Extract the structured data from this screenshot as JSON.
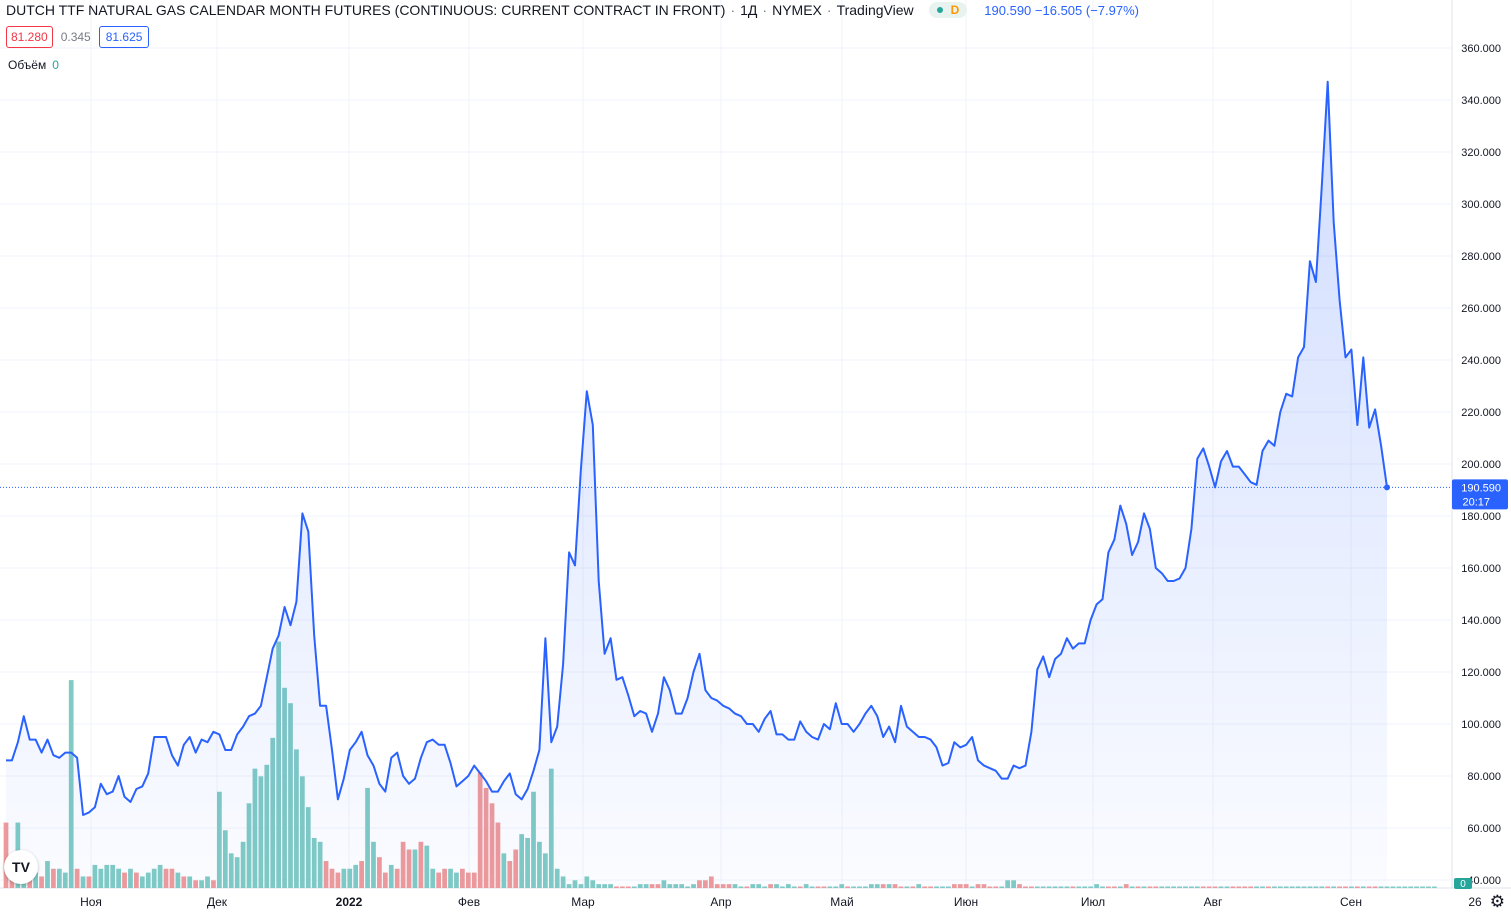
{
  "header": {
    "symbol": "DUTCH TTF NATURAL GAS CALENDAR MONTH FUTURES (CONTINUOUS: CURRENT CONTRACT IN FRONT)",
    "interval": "1Д",
    "exchange": "NYMEX",
    "source": "TradingView",
    "status_letter": "D",
    "last": "190.590",
    "change": "−16.505 (−7.97%)",
    "sep": "·"
  },
  "quote_row": {
    "bid": "81.280",
    "spread": "0.345",
    "ask": "81.625"
  },
  "volume_row": {
    "label": "Объём",
    "value": "0"
  },
  "price_label": {
    "value": "190.590",
    "countdown": "20:17"
  },
  "volume_axis_label": "0",
  "colors": {
    "line": "#2962ff",
    "up": "#26a69a",
    "down": "#ef5350"
  },
  "icons": {
    "logo": "tradingview-logo-icon",
    "settings": "gear-icon"
  },
  "logo_text": "TV",
  "chart_data": {
    "type": "line",
    "y_axis": {
      "ticks": [
        "360.000",
        "340.000",
        "320.000",
        "300.000",
        "280.000",
        "260.000",
        "240.000",
        "220.000",
        "200.000",
        "180.000",
        "160.000",
        "140.000",
        "120.000",
        "100.000",
        "80.000",
        "60.000",
        "40.000"
      ],
      "range": [
        37,
        363
      ]
    },
    "x_axis": {
      "ticks": [
        "Ноя",
        "Дек",
        "2022",
        "Фев",
        "Мар",
        "Апр",
        "Май",
        "Июн",
        "Июл",
        "Авг",
        "Сен",
        "26"
      ]
    },
    "series": [
      {
        "values": [
          86,
          86,
          93,
          103,
          94,
          94,
          89,
          94,
          88,
          87,
          89,
          89,
          87,
          65,
          66,
          68,
          77,
          73,
          74,
          80,
          72,
          70,
          75,
          76,
          81,
          95,
          95,
          95,
          88,
          84,
          92,
          95,
          89,
          94,
          93,
          97,
          96,
          90,
          90,
          96,
          99,
          103,
          104,
          107,
          118,
          129,
          134,
          145,
          138,
          147,
          181,
          174,
          134,
          107,
          107,
          90,
          71,
          79,
          90,
          93,
          97,
          88,
          84,
          77,
          74,
          87,
          89,
          80,
          77,
          79,
          87,
          93,
          94,
          92,
          92,
          85,
          76,
          78,
          80,
          84,
          81,
          78,
          74,
          74,
          78,
          81,
          73,
          71,
          75,
          82,
          90,
          133,
          93,
          99,
          123,
          166,
          161,
          198,
          228,
          215,
          155,
          127,
          133,
          117,
          118,
          111,
          103,
          105,
          104,
          97,
          104,
          118,
          113,
          104,
          104,
          110,
          120,
          127,
          113,
          110,
          109,
          107,
          106,
          104,
          103,
          100,
          100,
          97,
          102,
          105,
          96,
          96,
          94,
          94,
          101,
          97,
          95,
          94,
          100,
          98,
          108,
          100,
          100,
          97,
          100,
          104,
          107,
          103,
          95,
          99,
          93,
          107,
          99,
          97,
          95,
          95,
          94,
          91,
          84,
          85,
          93,
          91,
          92,
          95,
          86,
          84,
          83,
          82,
          79,
          79,
          84,
          83,
          84,
          97,
          121,
          126,
          118,
          125,
          127,
          133,
          129,
          131,
          131,
          140,
          146,
          148,
          166,
          171,
          184,
          177,
          165,
          170,
          181,
          175,
          160,
          158,
          155,
          155,
          156,
          160,
          175,
          202,
          206,
          199,
          191,
          201,
          205,
          199,
          199,
          196,
          193,
          192,
          205,
          209,
          207,
          220,
          227,
          226,
          241,
          245,
          278,
          270,
          307,
          347,
          293,
          263,
          241,
          244,
          215,
          241,
          214,
          221,
          207,
          191
        ]
      }
    ],
    "volume": {
      "values": [
        17,
        6,
        17,
        7,
        3,
        4,
        3,
        7,
        5,
        5,
        4,
        54,
        5,
        3,
        3,
        6,
        5,
        6,
        6,
        5,
        4,
        5,
        4,
        3,
        4,
        5,
        6,
        5,
        5,
        4,
        3,
        3,
        2,
        2,
        3,
        2,
        25,
        15,
        9,
        8,
        12,
        22,
        31,
        29,
        32,
        39,
        64,
        52,
        48,
        36,
        29,
        21,
        13,
        12,
        7,
        5,
        4,
        5,
        5,
        6,
        7,
        26,
        12,
        8,
        4,
        6,
        5,
        12,
        10,
        10,
        12,
        11,
        5,
        4,
        5,
        5,
        4,
        5,
        4,
        4,
        30,
        26,
        22,
        17,
        9,
        7,
        10,
        14,
        13,
        25,
        12,
        9,
        31,
        5,
        3,
        1,
        2,
        1,
        3,
        2,
        1,
        1,
        1,
        0,
        0,
        0,
        0,
        1,
        1,
        1,
        1,
        2,
        1,
        1,
        1,
        0,
        1,
        2,
        2,
        3,
        1,
        1,
        1,
        1,
        0,
        0,
        1,
        1,
        0,
        1,
        1,
        0,
        1,
        0,
        0,
        1,
        0,
        0,
        0,
        0,
        0,
        1,
        0,
        0,
        0,
        0,
        1,
        1,
        1,
        1,
        1,
        0,
        0,
        0,
        1,
        0,
        0,
        0,
        0,
        0,
        1,
        1,
        1,
        0,
        1,
        1,
        0,
        0,
        0,
        2,
        2,
        1,
        0,
        0,
        0,
        0,
        0,
        0,
        0,
        0,
        0,
        0,
        0,
        0,
        1,
        0,
        0,
        0,
        0,
        1,
        0,
        0,
        0,
        0,
        0,
        0,
        0,
        0,
        0,
        0,
        0,
        0,
        0,
        0,
        0,
        0,
        0,
        0,
        0,
        0,
        0,
        0,
        0,
        0,
        0,
        0,
        0,
        0,
        0,
        0,
        0,
        0,
        0,
        0,
        0,
        0,
        0,
        0,
        0,
        0,
        0,
        0,
        0,
        0,
        0,
        0,
        0,
        0,
        0,
        0,
        0,
        0
      ],
      "down": [
        1,
        1,
        0,
        0,
        1,
        0,
        1,
        0,
        1,
        0,
        0,
        0,
        1,
        0,
        1,
        0,
        0,
        0,
        0,
        0,
        1,
        0,
        1,
        0,
        0,
        0,
        0,
        1,
        1,
        0,
        1,
        0,
        1,
        0,
        0,
        1,
        0,
        0,
        0,
        0,
        0,
        0,
        0,
        0,
        0,
        0,
        0,
        0,
        0,
        0,
        0,
        0,
        0,
        0,
        1,
        1,
        1,
        0,
        0,
        0,
        1,
        0,
        0,
        1,
        1,
        0,
        1,
        1,
        1,
        0,
        1,
        0,
        0,
        1,
        1,
        0,
        0,
        1,
        1,
        1,
        1,
        1,
        1,
        1,
        0,
        1,
        1,
        0,
        0,
        0,
        0,
        0,
        0,
        0,
        0,
        0,
        0,
        0,
        0,
        0,
        0,
        0,
        0,
        1,
        1,
        1,
        0,
        0,
        0,
        1,
        1,
        0,
        0,
        0,
        0,
        0,
        0,
        1,
        1,
        1,
        1,
        1,
        1,
        0,
        0,
        1,
        0,
        0,
        0,
        1,
        0,
        0,
        0,
        0,
        1,
        0,
        0,
        1,
        1,
        0,
        0,
        0,
        1,
        0,
        0,
        0,
        0,
        0,
        1,
        0,
        1,
        1,
        0,
        1,
        0,
        1,
        1,
        0,
        0,
        0,
        1,
        1,
        1,
        0,
        1,
        1,
        1,
        1,
        0,
        0,
        0,
        1,
        1,
        1,
        0,
        0,
        0,
        0,
        0,
        0,
        1,
        0,
        0,
        0,
        0,
        0,
        1,
        1,
        0,
        1,
        0,
        1,
        0,
        1,
        1,
        0,
        0,
        0,
        0,
        0,
        0,
        0,
        1,
        1,
        1,
        0,
        0,
        1,
        1,
        1,
        1,
        0,
        0,
        1,
        0,
        0,
        0,
        0,
        0,
        0,
        0,
        0,
        0,
        1,
        0,
        1,
        1,
        0,
        1,
        0,
        1,
        1
      ]
    }
  }
}
